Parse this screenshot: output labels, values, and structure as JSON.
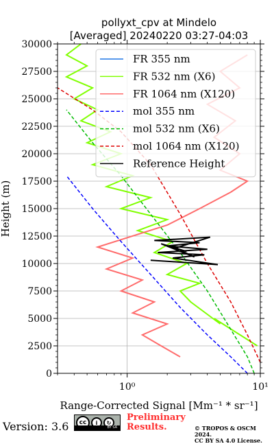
{
  "chart_data": {
    "type": "line",
    "title": "pollyxt_cpv at Mindelo",
    "subtitle": "[Averaged] 20240220 03:27-04:03",
    "xlabel": "Range-Corrected Signal [Mm⁻¹ * sr⁻¹]",
    "ylabel": "Height (m)",
    "xscale": "log",
    "xlim": [
      0.3,
      10
    ],
    "ylim": [
      0,
      30000
    ],
    "x_ticks": [
      1,
      10
    ],
    "x_tick_labels": [
      "10⁰",
      "10¹"
    ],
    "y_ticks": [
      0,
      2500,
      5000,
      7500,
      10000,
      12500,
      15000,
      17500,
      20000,
      22500,
      25000,
      27500,
      30000
    ],
    "grid": true,
    "legend_position": "top-right",
    "series": [
      {
        "name": "FR 355 nm",
        "color": "#1f77e6",
        "style": "solid",
        "points": []
      },
      {
        "name": "FR 532 nm (X6)",
        "color": "#80ff00",
        "style": "solid",
        "points": [
          [
            9.5,
            2500
          ],
          [
            4.5,
            5000
          ],
          [
            5.0,
            4500
          ],
          [
            3.0,
            6500
          ],
          [
            2.5,
            7500
          ],
          [
            3.5,
            8200
          ],
          [
            2.0,
            9000
          ],
          [
            2.8,
            10000
          ],
          [
            1.6,
            11000
          ],
          [
            2.2,
            12000
          ],
          [
            1.2,
            13000
          ],
          [
            2.0,
            14000
          ],
          [
            0.9,
            15000
          ],
          [
            1.5,
            16000
          ],
          [
            0.7,
            17000
          ],
          [
            1.1,
            18000
          ],
          [
            0.55,
            19000
          ],
          [
            0.9,
            20000
          ],
          [
            0.5,
            21000
          ],
          [
            0.75,
            22000
          ],
          [
            0.45,
            23000
          ],
          [
            0.6,
            24000
          ],
          [
            0.4,
            25000
          ],
          [
            0.55,
            26000
          ],
          [
            0.35,
            27000
          ],
          [
            0.5,
            28000
          ],
          [
            0.35,
            29000
          ],
          [
            0.45,
            30000
          ]
        ]
      },
      {
        "name": "FR 1064 nm (X120)",
        "color": "#ff6b6b",
        "style": "solid",
        "points": [
          [
            2.5,
            1500
          ],
          [
            1.8,
            2500
          ],
          [
            1.3,
            3500
          ],
          [
            2.0,
            4500
          ],
          [
            1.1,
            5500
          ],
          [
            1.6,
            6500
          ],
          [
            0.9,
            7500
          ],
          [
            1.3,
            8500
          ],
          [
            0.7,
            9500
          ],
          [
            1.1,
            10500
          ],
          [
            0.6,
            11500
          ],
          [
            2.0,
            13500
          ],
          [
            3.5,
            15000
          ],
          [
            6.0,
            16500
          ],
          [
            8.0,
            17500
          ],
          [
            5.0,
            18500
          ],
          [
            7.0,
            20000
          ],
          [
            4.5,
            21500
          ],
          [
            6.5,
            23000
          ],
          [
            4.0,
            24500
          ],
          [
            7.0,
            26000
          ],
          [
            5.0,
            27500
          ],
          [
            8.0,
            29000
          ]
        ]
      },
      {
        "name": "mol 355 nm",
        "color": "#0000ff",
        "style": "dashed",
        "points": [
          [
            8.0,
            0
          ],
          [
            6.0,
            1500
          ],
          [
            4.0,
            3500
          ],
          [
            2.5,
            6000
          ],
          [
            1.5,
            9000
          ],
          [
            0.9,
            12000
          ],
          [
            0.55,
            15000
          ],
          [
            0.35,
            18000
          ]
        ]
      },
      {
        "name": "mol 532 nm (X6)",
        "color": "#00bb00",
        "style": "dashed",
        "points": [
          [
            9.0,
            0
          ],
          [
            8.0,
            1500
          ],
          [
            6.0,
            4000
          ],
          [
            4.0,
            7500
          ],
          [
            2.5,
            11000
          ],
          [
            1.5,
            14500
          ],
          [
            0.9,
            18000
          ],
          [
            0.55,
            21000
          ],
          [
            0.35,
            24000
          ]
        ]
      },
      {
        "name": "mol 1064 nm (X120)",
        "color": "#dd0000",
        "style": "dashed",
        "points": [
          [
            10.0,
            1000
          ],
          [
            8.0,
            3500
          ],
          [
            6.0,
            6500
          ],
          [
            4.0,
            10000
          ],
          [
            2.5,
            14500
          ],
          [
            1.5,
            19000
          ],
          [
            0.9,
            22000
          ],
          [
            0.55,
            24000
          ],
          [
            0.3,
            26000
          ]
        ]
      },
      {
        "name": "Reference Height",
        "color": "#000000",
        "style": "solid",
        "points": [
          [
            1.5,
            10300
          ],
          [
            4.8,
            9900
          ],
          [
            2.2,
            10500
          ],
          [
            3.8,
            10800
          ],
          [
            1.7,
            11000
          ],
          [
            4.0,
            11300
          ],
          [
            2.0,
            11600
          ],
          [
            3.5,
            11900
          ],
          [
            1.6,
            12100
          ],
          [
            4.2,
            12400
          ],
          [
            2.3,
            11400
          ],
          [
            2.8,
            11100
          ],
          [
            1.8,
            11800
          ],
          [
            3.2,
            10600
          ],
          [
            2.5,
            11200
          ]
        ]
      }
    ]
  },
  "footer": {
    "version": "Version: 3.6",
    "preliminary_line1": "Preliminary",
    "preliminary_line2": "Results.",
    "copyright_line1": "© TROPOS & OSCM 2024.",
    "copyright_line2": "CC BY SA 4.0 License.",
    "cc_badge_text": "BY SA"
  }
}
